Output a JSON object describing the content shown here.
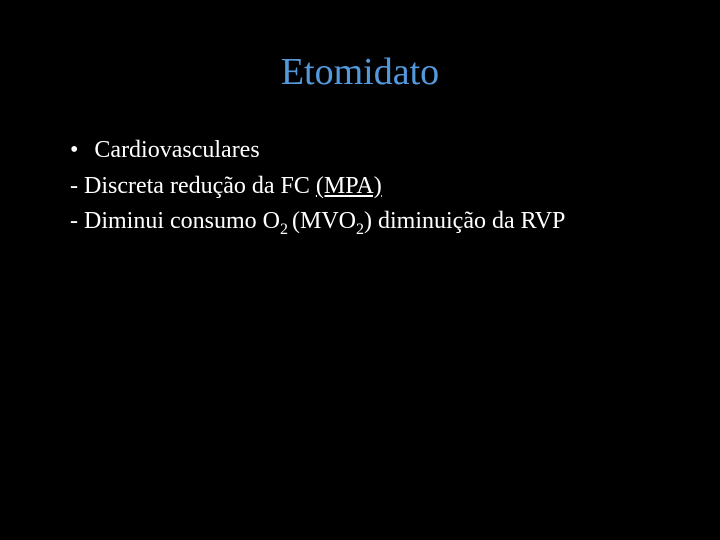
{
  "slide": {
    "title": "Etomidato",
    "title_color": "#5599dd",
    "body_color": "#ffffff",
    "background_color": "#000000",
    "bullet": {
      "marker": "•",
      "text": "Cardiovasculares"
    },
    "line1": {
      "prefix": "- Discreta redução da FC ",
      "underlined": "(MPA)"
    },
    "line2": {
      "prefix": "- Diminui consumo O",
      "sub1": "2 ",
      "mid": "(MVO",
      "sub2": "2",
      "suffix": ") diminuição da RVP"
    }
  }
}
